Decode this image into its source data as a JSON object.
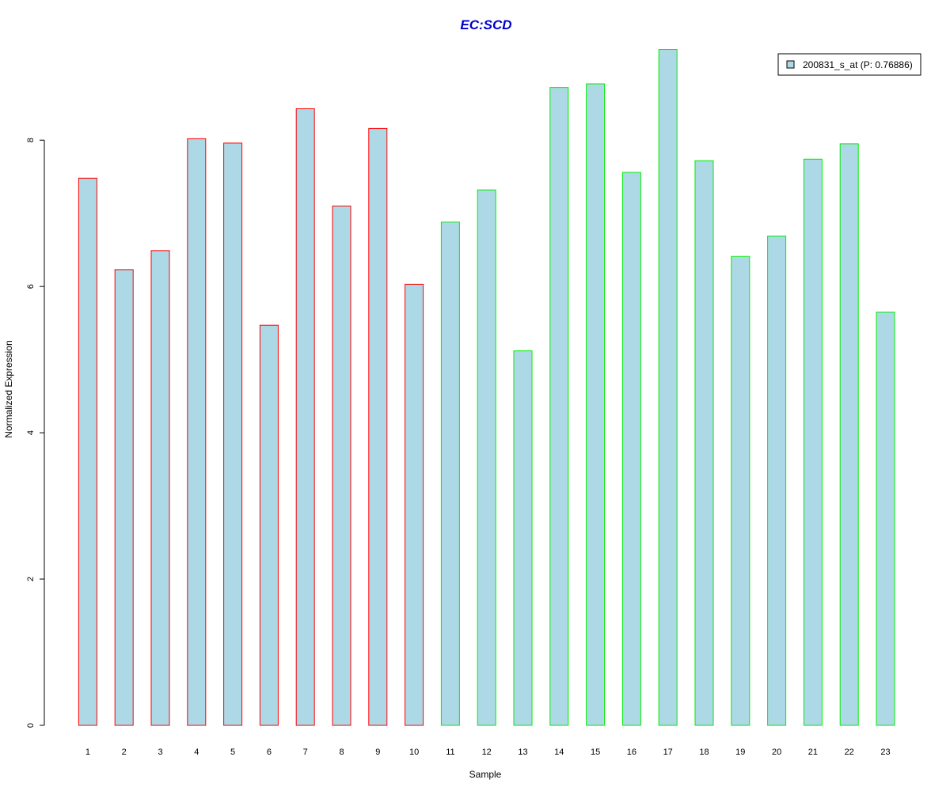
{
  "chart_data": {
    "type": "bar",
    "title": "EC:SCD",
    "xlabel": "Sample",
    "ylabel": "Normalized Expression",
    "categories": [
      "1",
      "2",
      "3",
      "4",
      "5",
      "6",
      "7",
      "8",
      "9",
      "10",
      "11",
      "12",
      "13",
      "14",
      "15",
      "16",
      "17",
      "18",
      "19",
      "20",
      "21",
      "22",
      "23"
    ],
    "values": [
      7.48,
      6.23,
      6.49,
      8.02,
      7.96,
      5.47,
      8.43,
      7.1,
      8.16,
      6.03,
      6.88,
      7.32,
      5.12,
      8.72,
      8.77,
      7.56,
      9.24,
      7.72,
      6.41,
      6.69,
      7.74,
      7.95,
      5.65
    ],
    "groups": [
      1,
      1,
      1,
      1,
      1,
      1,
      1,
      1,
      1,
      1,
      2,
      2,
      2,
      2,
      2,
      2,
      2,
      2,
      2,
      2,
      2,
      2,
      2
    ],
    "group_colors": {
      "1": "#ff0000",
      "2": "#00ee00"
    },
    "bar_fill": "#add8e6",
    "title_color": "#0000cc",
    "yticks": [
      0,
      2,
      4,
      6,
      8
    ],
    "ylim": [
      0,
      9.3
    ],
    "grid": false,
    "legend": {
      "position": "top-right",
      "entries": [
        {
          "label": "200831_s_at (P: 0.76886)",
          "color": "#add8e6"
        }
      ]
    }
  }
}
